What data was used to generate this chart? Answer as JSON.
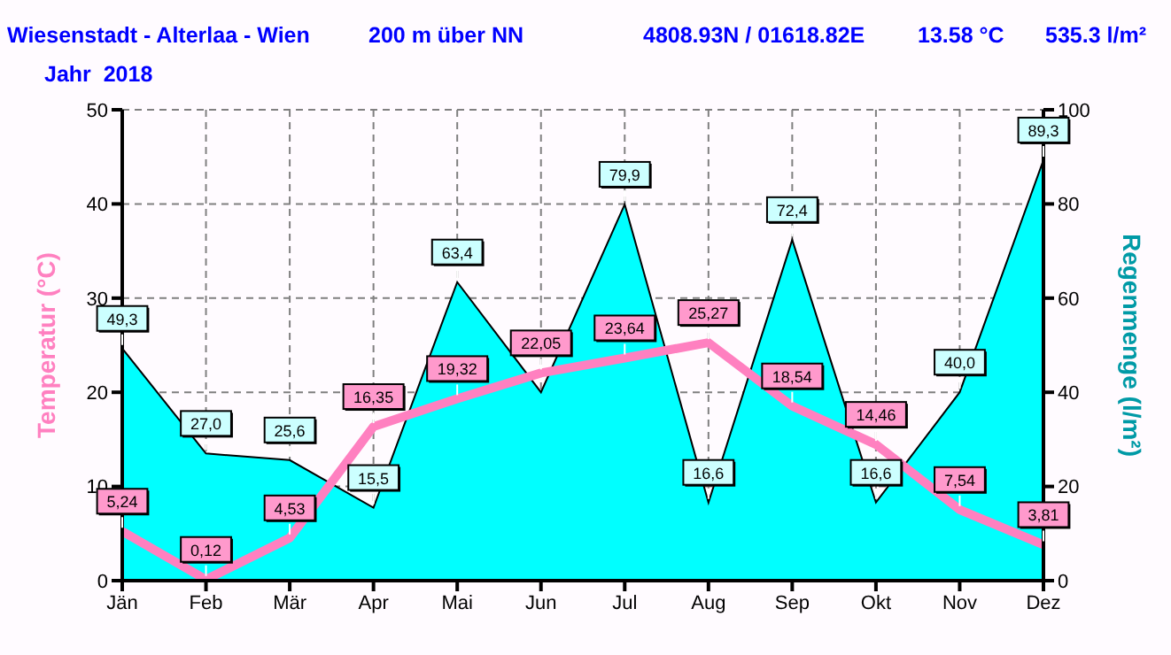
{
  "chart_data": {
    "type": "line",
    "title": "Wiesenstadt - Alterlaa - Wien",
    "subtitle": "Jahr  2018",
    "annotations": [
      "200 m über NN",
      "4808.93N / 01618.82E",
      "13.58 °C",
      "535.3 l/m²"
    ],
    "categories": [
      "Jän",
      "Feb",
      "Mär",
      "Apr",
      "Mai",
      "Jun",
      "Jul",
      "Aug",
      "Sep",
      "Okt",
      "Nov",
      "Dez"
    ],
    "series": [
      {
        "type": "area",
        "axis": "y2",
        "color": "#00ffff",
        "values": [
          49.3,
          27.0,
          25.6,
          15.5,
          63.4,
          40.0,
          79.9,
          16.6,
          72.4,
          16.6,
          40.0,
          89.3
        ],
        "value_labels": [
          "49,3",
          "27,0",
          "25,6",
          "15,5",
          "63,4",
          null,
          "79,9",
          "16,6",
          "72,4",
          "16,6",
          "40,0",
          "89,3"
        ]
      },
      {
        "color": "#ff80c0",
        "values": [
          5.24,
          0.12,
          4.53,
          16.35,
          19.32,
          22.05,
          23.64,
          25.27,
          18.54,
          14.46,
          7.54,
          3.81
        ],
        "value_labels": [
          "5,24",
          "0,12",
          "4,53",
          "16,35",
          "19,32",
          "22,05",
          "23,64",
          "25,27",
          "18,54",
          "14,46",
          "7,54",
          "3,81"
        ]
      }
    ],
    "ylabel": "Temperatur  (°C)",
    "y2label": "Regenmenge  (l/m²)",
    "ylim": [
      0,
      50
    ],
    "yticks": [
      0,
      10,
      20,
      30,
      40,
      50
    ],
    "y2lim": [
      0,
      100
    ],
    "y2ticks": [
      0,
      20,
      40,
      60,
      80,
      100
    ],
    "grid": true,
    "legend": false,
    "line_style": "solid",
    "marker": "none"
  }
}
